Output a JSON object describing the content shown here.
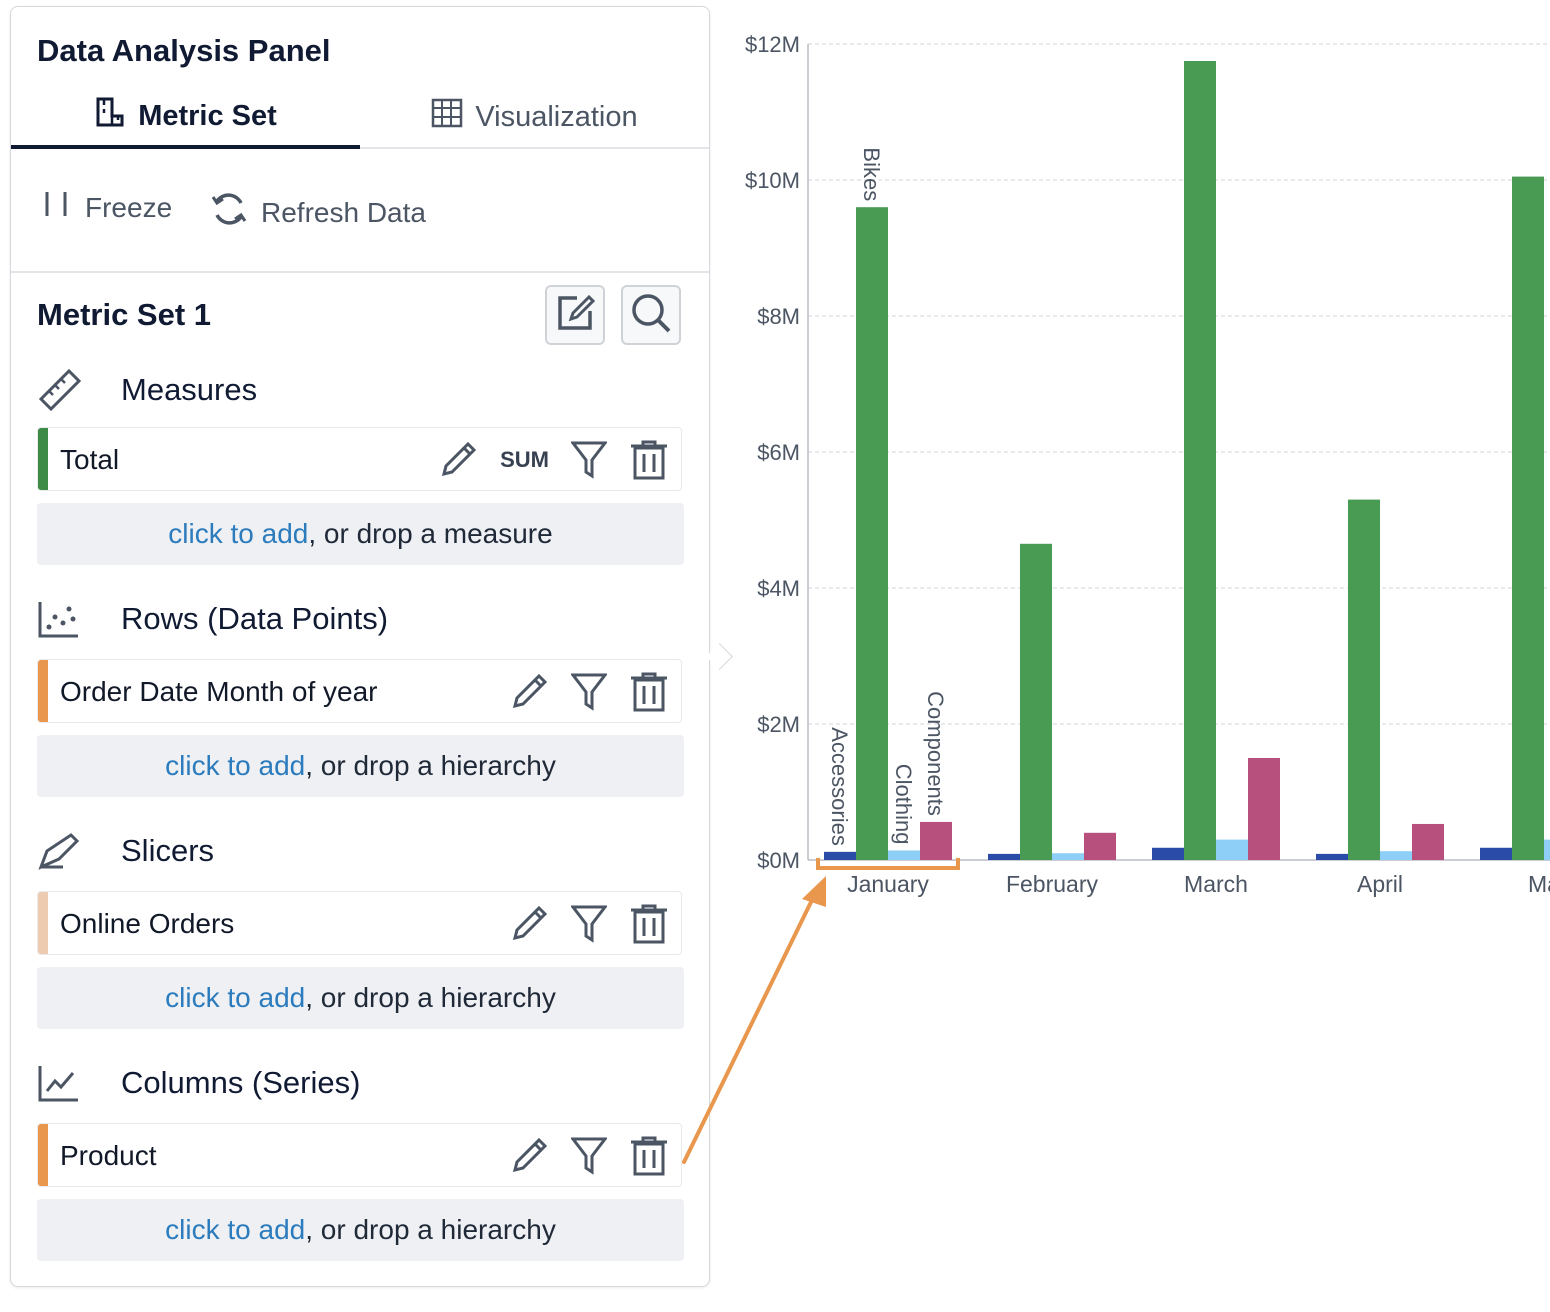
{
  "panel": {
    "title": "Data Analysis Panel",
    "tabs": [
      {
        "label": "Metric Set",
        "icon": "metric-set-icon",
        "active": true
      },
      {
        "label": "Visualization",
        "icon": "grid-icon",
        "active": false
      }
    ],
    "toolbar": {
      "freeze_label": "Freeze",
      "refresh_label": "Refresh Data"
    },
    "metric_set_title": "Metric Set 1",
    "link_text": "click to add",
    "sections": {
      "measures": {
        "title": "Measures",
        "item": "Total",
        "aggregation": "SUM",
        "accent": "#3d8b46",
        "drop_text": ", or drop a measure"
      },
      "rows": {
        "title": "Rows (Data Points)",
        "item": "Order Date Month of year",
        "accent": "#e8974d",
        "drop_text": ", or drop a hierarchy"
      },
      "slicers": {
        "title": "Slicers",
        "item": "Online Orders",
        "accent": "#eccbb0",
        "drop_text": ", or drop a hierarchy"
      },
      "columns": {
        "title": "Columns (Series)",
        "item": "Product",
        "accent": "#e8974d",
        "drop_text": ", or drop a hierarchy"
      }
    }
  },
  "chart_data": {
    "type": "bar",
    "categories": [
      "January",
      "February",
      "March",
      "April",
      "Ma"
    ],
    "series": [
      {
        "name": "Accessories",
        "color": "#2a4ca8",
        "values": [
          0.12,
          0.09,
          0.18,
          0.09,
          0.18
        ]
      },
      {
        "name": "Bikes",
        "color": "#499a52",
        "values": [
          9.6,
          4.65,
          11.75,
          5.3,
          10.05
        ]
      },
      {
        "name": "Clothing",
        "color": "#8ecff7",
        "values": [
          0.14,
          0.1,
          0.3,
          0.13,
          0.3
        ]
      },
      {
        "name": "Components",
        "color": "#b8507e",
        "values": [
          0.56,
          0.4,
          1.5,
          0.53,
          null
        ]
      }
    ],
    "yticks": [
      "$0M",
      "$2M",
      "$4M",
      "$6M",
      "$8M",
      "$10M",
      "$12M"
    ],
    "ylim": [
      0,
      12
    ],
    "grid": true,
    "highlight_color": "#e8974d",
    "highlighted_category": "January"
  }
}
